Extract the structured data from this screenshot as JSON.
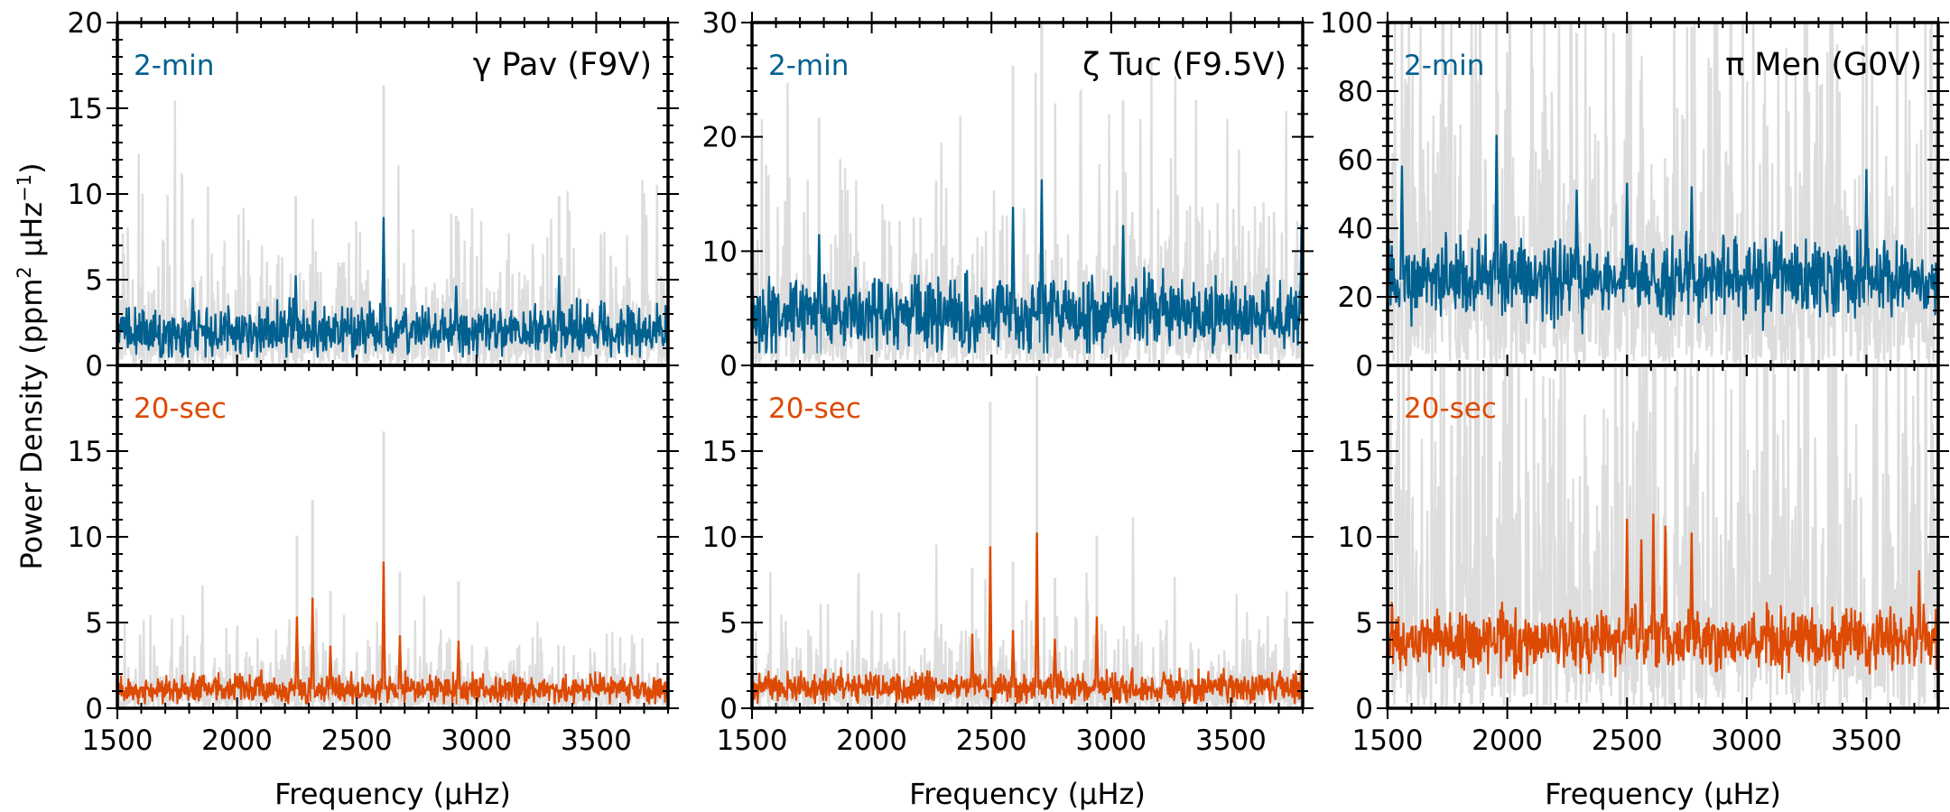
{
  "figure": {
    "ylabel_main": "Power Density (ppm",
    "ylabel_sup1": "2",
    "ylabel_mid": " μHz",
    "ylabel_sup2": "−1",
    "ylabel_end": ")",
    "xlabel": "Frequency (μHz)"
  },
  "colors": {
    "two_min": "#006090",
    "twenty_sec": "#dd4a04",
    "background_spectrum": "#dddddd",
    "axes": "#000000"
  },
  "chart_data": [
    {
      "id": "gpav-2min",
      "type": "line",
      "row": 0,
      "col": 0,
      "star": "γ Pav (F9V)",
      "cadence_label": "2-min",
      "cadence": "two_min",
      "xlim": [
        1500,
        3800
      ],
      "ylim": [
        0,
        20
      ],
      "yticks": [
        0,
        5,
        10,
        15,
        20
      ],
      "xticks": [
        1500,
        2000,
        2500,
        3000,
        3500
      ],
      "smoothed_mean": 2.0,
      "raw_scale": 4.2,
      "noise_amp": 0.9,
      "seed": 11,
      "peaks": [
        {
          "x": 2612,
          "y": 8.6
        },
        {
          "x": 2245,
          "y": 5.2
        },
        {
          "x": 3345,
          "y": 5.2
        },
        {
          "x": 1815,
          "y": 4.5
        },
        {
          "x": 2915,
          "y": 4.6
        }
      ]
    },
    {
      "id": "gpav-20sec",
      "type": "line",
      "row": 1,
      "col": 0,
      "star": "",
      "cadence_label": "20-sec",
      "cadence": "twenty_sec",
      "xlim": [
        1500,
        3800
      ],
      "ylim": [
        0,
        20
      ],
      "yticks": [
        0,
        5,
        10,
        15
      ],
      "xticks": [
        1500,
        2000,
        2500,
        3000,
        3500
      ],
      "smoothed_mean": 1.1,
      "raw_scale": 2.2,
      "noise_amp": 0.5,
      "seed": 23,
      "peaks": [
        {
          "x": 2612,
          "y": 8.5
        },
        {
          "x": 2315,
          "y": 6.4
        },
        {
          "x": 2250,
          "y": 5.3
        },
        {
          "x": 2680,
          "y": 4.2
        },
        {
          "x": 2925,
          "y": 3.9
        },
        {
          "x": 2390,
          "y": 3.6
        }
      ]
    },
    {
      "id": "ztuc-2min",
      "type": "line",
      "row": 0,
      "col": 1,
      "star": "ζ Tuc (F9.5V)",
      "cadence_label": "2-min",
      "cadence": "two_min",
      "xlim": [
        1500,
        3800
      ],
      "ylim": [
        0,
        30
      ],
      "yticks": [
        0,
        10,
        20,
        30
      ],
      "xticks": [
        1500,
        2000,
        2500,
        3000,
        3500
      ],
      "smoothed_mean": 4.5,
      "raw_scale": 9.0,
      "noise_amp": 2.0,
      "seed": 37,
      "peaks": [
        {
          "x": 2710,
          "y": 16.2
        },
        {
          "x": 2590,
          "y": 13.8
        },
        {
          "x": 3050,
          "y": 12.2
        },
        {
          "x": 3795,
          "y": 12.2
        },
        {
          "x": 1780,
          "y": 11.4
        }
      ]
    },
    {
      "id": "ztuc-20sec",
      "type": "line",
      "row": 1,
      "col": 1,
      "star": "",
      "cadence_label": "20-sec",
      "cadence": "twenty_sec",
      "xlim": [
        1500,
        3800
      ],
      "ylim": [
        0,
        20
      ],
      "yticks": [
        0,
        5,
        10,
        15
      ],
      "xticks": [
        1500,
        2000,
        2500,
        3000,
        3500
      ],
      "smoothed_mean": 1.2,
      "raw_scale": 2.6,
      "noise_amp": 0.55,
      "seed": 41,
      "peaks": [
        {
          "x": 2690,
          "y": 10.2
        },
        {
          "x": 2495,
          "y": 9.4
        },
        {
          "x": 2940,
          "y": 5.3
        },
        {
          "x": 2590,
          "y": 4.5
        },
        {
          "x": 2420,
          "y": 4.3
        },
        {
          "x": 2765,
          "y": 4.0
        }
      ]
    },
    {
      "id": "pmen-2min",
      "type": "line",
      "row": 0,
      "col": 2,
      "star": "π Men (G0V)",
      "cadence_label": "2-min",
      "cadence": "two_min",
      "xlim": [
        1500,
        3800
      ],
      "ylim": [
        0,
        100
      ],
      "yticks": [
        0,
        20,
        40,
        60,
        80,
        100
      ],
      "xticks": [
        1500,
        2000,
        2500,
        3000,
        3500
      ],
      "smoothed_mean": 25,
      "raw_scale": 55,
      "noise_amp": 7.0,
      "seed": 53,
      "peaks": [
        {
          "x": 1955,
          "y": 67
        },
        {
          "x": 1560,
          "y": 58
        },
        {
          "x": 3500,
          "y": 57
        },
        {
          "x": 2500,
          "y": 53
        },
        {
          "x": 2290,
          "y": 51
        },
        {
          "x": 2770,
          "y": 52
        }
      ]
    },
    {
      "id": "pmen-20sec",
      "type": "line",
      "row": 1,
      "col": 2,
      "star": "",
      "cadence_label": "20-sec",
      "cadence": "twenty_sec",
      "xlim": [
        1500,
        3800
      ],
      "ylim": [
        0,
        20
      ],
      "yticks": [
        0,
        5,
        10,
        15
      ],
      "xticks": [
        1500,
        2000,
        2500,
        3000,
        3500
      ],
      "smoothed_mean": 4.0,
      "raw_scale": 14.0,
      "noise_amp": 1.1,
      "seed": 67,
      "peaks": [
        {
          "x": 2610,
          "y": 11.3
        },
        {
          "x": 2500,
          "y": 11.0
        },
        {
          "x": 2660,
          "y": 10.6
        },
        {
          "x": 2770,
          "y": 10.2
        },
        {
          "x": 2560,
          "y": 9.8
        },
        {
          "x": 3720,
          "y": 8.0
        }
      ]
    }
  ]
}
